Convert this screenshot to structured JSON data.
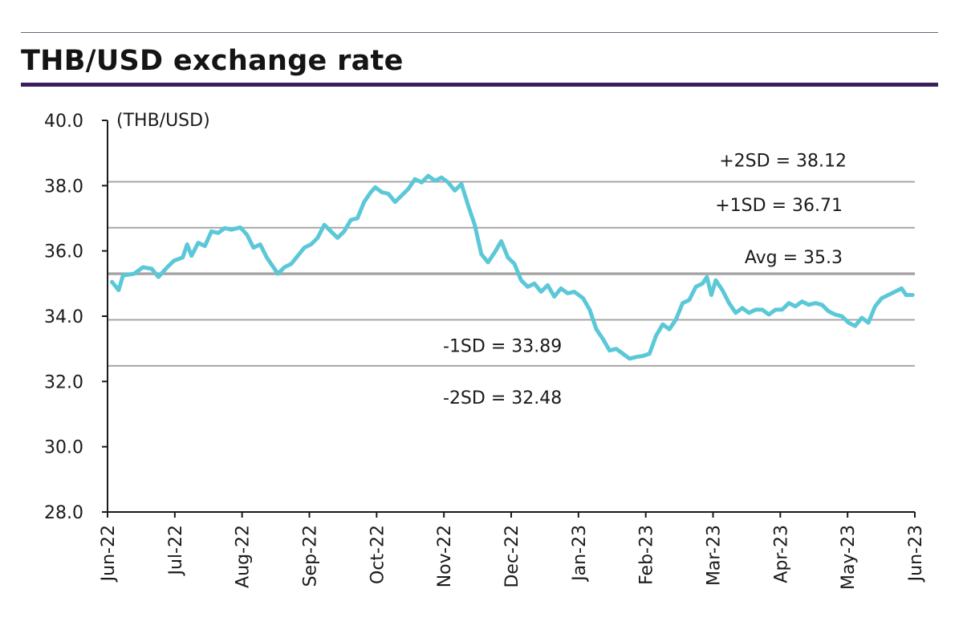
{
  "title": "THB/USD exchange rate",
  "chart_data": {
    "type": "line",
    "title": "THB/USD exchange rate",
    "ylabel": "(THB/USD)",
    "ylim": [
      28.0,
      40.0
    ],
    "y_ticks": [
      "40.0",
      "38.0",
      "36.0",
      "34.0",
      "32.0",
      "30.0",
      "28.0"
    ],
    "x_ticks": [
      "Jun-22",
      "Jul-22",
      "Aug-22",
      "Sep-22",
      "Oct-22",
      "Nov-22",
      "Dec-22",
      "Jan-23",
      "Feb-23",
      "Mar-23",
      "Apr-23",
      "May-23",
      "Jun-23"
    ],
    "xlim": [
      "2022-06-01",
      "2023-06-01"
    ],
    "line_color": "#5bc8d8",
    "reference_lines": [
      {
        "label": "+2SD = 38.12",
        "value": 38.12
      },
      {
        "label": "+1SD = 36.71",
        "value": 36.71
      },
      {
        "label": "Avg = 35.3",
        "value": 35.3
      },
      {
        "label": "-1SD = 33.89",
        "value": 33.89
      },
      {
        "label": "-2SD = 32.48",
        "value": 32.48
      }
    ],
    "series": [
      {
        "values": [
          [
            "2022-06-03",
            35.05
          ],
          [
            "2022-06-06",
            34.8
          ],
          [
            "2022-06-08",
            35.25
          ],
          [
            "2022-06-13",
            35.3
          ],
          [
            "2022-06-17",
            35.5
          ],
          [
            "2022-06-21",
            35.45
          ],
          [
            "2022-06-24",
            35.2
          ],
          [
            "2022-06-28",
            35.5
          ],
          [
            "2022-07-01",
            35.7
          ],
          [
            "2022-07-05",
            35.8
          ],
          [
            "2022-07-07",
            36.2
          ],
          [
            "2022-07-09",
            35.85
          ],
          [
            "2022-07-12",
            36.25
          ],
          [
            "2022-07-15",
            36.15
          ],
          [
            "2022-07-18",
            36.6
          ],
          [
            "2022-07-21",
            36.55
          ],
          [
            "2022-07-24",
            36.7
          ],
          [
            "2022-07-27",
            36.65
          ],
          [
            "2022-07-31",
            36.72
          ],
          [
            "2022-08-03",
            36.5
          ],
          [
            "2022-08-06",
            36.1
          ],
          [
            "2022-08-09",
            36.2
          ],
          [
            "2022-08-12",
            35.8
          ],
          [
            "2022-08-15",
            35.5
          ],
          [
            "2022-08-17",
            35.3
          ],
          [
            "2022-08-20",
            35.5
          ],
          [
            "2022-08-23",
            35.6
          ],
          [
            "2022-08-26",
            35.85
          ],
          [
            "2022-08-29",
            36.1
          ],
          [
            "2022-09-01",
            36.2
          ],
          [
            "2022-09-04",
            36.4
          ],
          [
            "2022-09-07",
            36.8
          ],
          [
            "2022-09-10",
            36.6
          ],
          [
            "2022-09-13",
            36.4
          ],
          [
            "2022-09-16",
            36.6
          ],
          [
            "2022-09-19",
            36.95
          ],
          [
            "2022-09-22",
            37.0
          ],
          [
            "2022-09-25",
            37.5
          ],
          [
            "2022-09-28",
            37.8
          ],
          [
            "2022-09-30",
            37.95
          ],
          [
            "2022-10-03",
            37.8
          ],
          [
            "2022-10-06",
            37.75
          ],
          [
            "2022-10-09",
            37.5
          ],
          [
            "2022-10-12",
            37.7
          ],
          [
            "2022-10-15",
            37.9
          ],
          [
            "2022-10-18",
            38.2
          ],
          [
            "2022-10-21",
            38.1
          ],
          [
            "2022-10-24",
            38.3
          ],
          [
            "2022-10-27",
            38.15
          ],
          [
            "2022-10-30",
            38.25
          ],
          [
            "2022-11-02",
            38.1
          ],
          [
            "2022-11-05",
            37.85
          ],
          [
            "2022-11-08",
            38.05
          ],
          [
            "2022-11-11",
            37.4
          ],
          [
            "2022-11-14",
            36.8
          ],
          [
            "2022-11-17",
            35.9
          ],
          [
            "2022-11-20",
            35.65
          ],
          [
            "2022-11-23",
            35.95
          ],
          [
            "2022-11-26",
            36.3
          ],
          [
            "2022-11-29",
            35.8
          ],
          [
            "2022-12-02",
            35.6
          ],
          [
            "2022-12-05",
            35.1
          ],
          [
            "2022-12-08",
            34.9
          ],
          [
            "2022-12-11",
            35.0
          ],
          [
            "2022-12-14",
            34.75
          ],
          [
            "2022-12-17",
            34.95
          ],
          [
            "2022-12-20",
            34.6
          ],
          [
            "2022-12-23",
            34.85
          ],
          [
            "2022-12-26",
            34.7
          ],
          [
            "2022-12-29",
            34.75
          ],
          [
            "2023-01-02",
            34.55
          ],
          [
            "2023-01-05",
            34.2
          ],
          [
            "2023-01-08",
            33.6
          ],
          [
            "2023-01-11",
            33.3
          ],
          [
            "2023-01-14",
            32.95
          ],
          [
            "2023-01-17",
            33.0
          ],
          [
            "2023-01-20",
            32.85
          ],
          [
            "2023-01-23",
            32.7
          ],
          [
            "2023-01-26",
            32.75
          ],
          [
            "2023-01-29",
            32.78
          ],
          [
            "2023-02-01",
            32.85
          ],
          [
            "2023-02-04",
            33.4
          ],
          [
            "2023-02-07",
            33.75
          ],
          [
            "2023-02-10",
            33.6
          ],
          [
            "2023-02-13",
            33.9
          ],
          [
            "2023-02-16",
            34.4
          ],
          [
            "2023-02-19",
            34.5
          ],
          [
            "2023-02-22",
            34.9
          ],
          [
            "2023-02-25",
            35.0
          ],
          [
            "2023-02-27",
            35.2
          ],
          [
            "2023-03-01",
            34.65
          ],
          [
            "2023-03-03",
            35.1
          ],
          [
            "2023-03-06",
            34.8
          ],
          [
            "2023-03-09",
            34.4
          ],
          [
            "2023-03-12",
            34.1
          ],
          [
            "2023-03-15",
            34.25
          ],
          [
            "2023-03-18",
            34.1
          ],
          [
            "2023-03-21",
            34.2
          ],
          [
            "2023-03-24",
            34.2
          ],
          [
            "2023-03-27",
            34.05
          ],
          [
            "2023-03-30",
            34.2
          ],
          [
            "2023-04-02",
            34.2
          ],
          [
            "2023-04-05",
            34.4
          ],
          [
            "2023-04-08",
            34.3
          ],
          [
            "2023-04-11",
            34.45
          ],
          [
            "2023-04-14",
            34.35
          ],
          [
            "2023-04-17",
            34.4
          ],
          [
            "2023-04-20",
            34.35
          ],
          [
            "2023-04-23",
            34.15
          ],
          [
            "2023-04-26",
            34.05
          ],
          [
            "2023-04-29",
            34.0
          ],
          [
            "2023-05-02",
            33.8
          ],
          [
            "2023-05-05",
            33.7
          ],
          [
            "2023-05-08",
            33.95
          ],
          [
            "2023-05-11",
            33.8
          ],
          [
            "2023-05-14",
            34.3
          ],
          [
            "2023-05-17",
            34.55
          ],
          [
            "2023-05-20",
            34.65
          ],
          [
            "2023-05-23",
            34.75
          ],
          [
            "2023-05-26",
            34.85
          ],
          [
            "2023-05-28",
            34.65
          ],
          [
            "2023-05-31",
            34.65
          ]
        ]
      }
    ]
  }
}
